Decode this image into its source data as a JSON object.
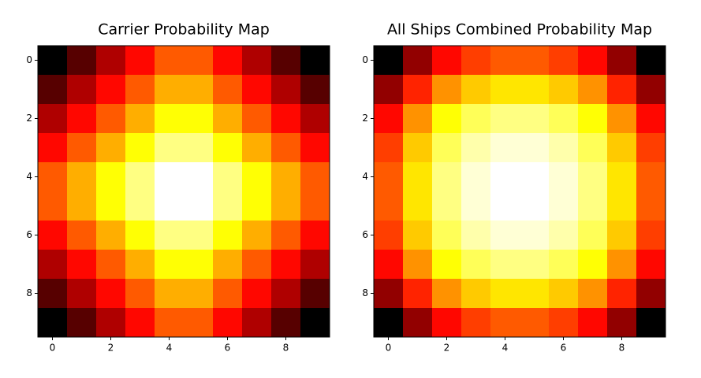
{
  "chart_data": [
    {
      "type": "heatmap",
      "title": "Carrier Probability Map",
      "colormap": "hot",
      "z": [
        [
          2,
          3,
          4,
          5,
          6,
          6,
          5,
          4,
          3,
          2
        ],
        [
          3,
          4,
          5,
          6,
          7,
          7,
          6,
          5,
          4,
          3
        ],
        [
          4,
          5,
          6,
          7,
          8,
          8,
          7,
          6,
          5,
          4
        ],
        [
          5,
          6,
          7,
          8,
          9,
          9,
          8,
          7,
          6,
          5
        ],
        [
          6,
          7,
          8,
          9,
          10,
          10,
          9,
          8,
          7,
          6
        ],
        [
          6,
          7,
          8,
          9,
          10,
          10,
          9,
          8,
          7,
          6
        ],
        [
          5,
          6,
          7,
          8,
          9,
          9,
          8,
          7,
          6,
          5
        ],
        [
          4,
          5,
          6,
          7,
          8,
          8,
          7,
          6,
          5,
          4
        ],
        [
          3,
          4,
          5,
          6,
          7,
          7,
          6,
          5,
          4,
          3
        ],
        [
          2,
          3,
          4,
          5,
          6,
          6,
          5,
          4,
          3,
          2
        ]
      ],
      "xlim": [
        -0.5,
        9.5
      ],
      "ylim": [
        9.5,
        -0.5
      ],
      "xticks": [
        0,
        2,
        4,
        6,
        8
      ],
      "yticks": [
        0,
        2,
        4,
        6,
        8
      ]
    },
    {
      "type": "heatmap",
      "title": "All Ships Combined Probability Map",
      "colormap": "hot",
      "z": [
        [
          10,
          15,
          19,
          21,
          22,
          22,
          21,
          19,
          15,
          10
        ],
        [
          15,
          20,
          24,
          26,
          27,
          27,
          26,
          24,
          20,
          15
        ],
        [
          19,
          24,
          28,
          30,
          31,
          31,
          30,
          28,
          24,
          19
        ],
        [
          21,
          26,
          30,
          32,
          33,
          33,
          32,
          30,
          26,
          21
        ],
        [
          22,
          27,
          31,
          33,
          34,
          34,
          33,
          31,
          27,
          22
        ],
        [
          22,
          27,
          31,
          33,
          34,
          34,
          33,
          31,
          27,
          22
        ],
        [
          21,
          26,
          30,
          32,
          33,
          33,
          32,
          30,
          26,
          21
        ],
        [
          19,
          24,
          28,
          30,
          31,
          31,
          30,
          28,
          24,
          19
        ],
        [
          15,
          20,
          24,
          26,
          27,
          27,
          26,
          24,
          20,
          15
        ],
        [
          10,
          15,
          19,
          21,
          22,
          22,
          21,
          19,
          15,
          10
        ]
      ],
      "xlim": [
        -0.5,
        9.5
      ],
      "ylim": [
        9.5,
        -0.5
      ],
      "xticks": [
        0,
        2,
        4,
        6,
        8
      ],
      "yticks": [
        0,
        2,
        4,
        6,
        8
      ]
    }
  ]
}
